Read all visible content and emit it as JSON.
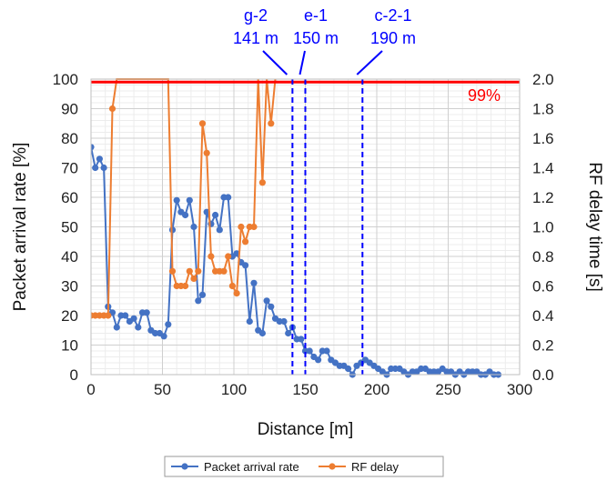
{
  "chart_data": {
    "type": "line",
    "title": "",
    "xlabel": "Distance [m]",
    "ylabel_left": "Packet arrival rate [%]",
    "ylabel_right": "RF delay time [s]",
    "xlim": [
      0,
      300
    ],
    "ylim_left": [
      0,
      100
    ],
    "ylim_right": [
      0,
      2.0
    ],
    "x_ticks": [
      0,
      50,
      100,
      150,
      200,
      250,
      300
    ],
    "y_left_ticks": [
      0,
      10,
      20,
      30,
      40,
      50,
      60,
      70,
      80,
      90,
      100
    ],
    "y_right_ticks": [
      "0.0",
      "0.2",
      "0.4",
      "0.6",
      "0.8",
      "1.0",
      "1.2",
      "1.4",
      "1.6",
      "1.8",
      "2.0"
    ],
    "grid": true,
    "legend_position": "bottom",
    "colors": {
      "packet": "#4472c4",
      "rf": "#ed7d31",
      "threshold": "#ff0000",
      "marker": "#0000ff"
    },
    "threshold": {
      "value": 99,
      "label": "99%"
    },
    "markers": [
      {
        "x": 141,
        "name": "g-2",
        "dist": "141 m"
      },
      {
        "x": 150,
        "name": "e-1",
        "dist": "150 m"
      },
      {
        "x": 190,
        "name": "c-2-1",
        "dist": "190 m"
      }
    ],
    "series": [
      {
        "name": "Packet arrival rate",
        "axis": "left",
        "points": [
          [
            0,
            77
          ],
          [
            3,
            70
          ],
          [
            6,
            73
          ],
          [
            9,
            70
          ],
          [
            12,
            23
          ],
          [
            15,
            21
          ],
          [
            18,
            16
          ],
          [
            21,
            20
          ],
          [
            24,
            20
          ],
          [
            27,
            18
          ],
          [
            30,
            19
          ],
          [
            33,
            16
          ],
          [
            36,
            21
          ],
          [
            39,
            21
          ],
          [
            42,
            15
          ],
          [
            45,
            14
          ],
          [
            48,
            14
          ],
          [
            51,
            13
          ],
          [
            54,
            17
          ],
          [
            57,
            49
          ],
          [
            60,
            59
          ],
          [
            63,
            55
          ],
          [
            66,
            54
          ],
          [
            69,
            59
          ],
          [
            72,
            50
          ],
          [
            75,
            25
          ],
          [
            78,
            27
          ],
          [
            81,
            55
          ],
          [
            84,
            51
          ],
          [
            87,
            54
          ],
          [
            90,
            49
          ],
          [
            93,
            60
          ],
          [
            96,
            60
          ],
          [
            99,
            40
          ],
          [
            102,
            41
          ],
          [
            105,
            38
          ],
          [
            108,
            37
          ],
          [
            111,
            18
          ],
          [
            114,
            31
          ],
          [
            117,
            15
          ],
          [
            120,
            14
          ],
          [
            123,
            25
          ],
          [
            126,
            23
          ],
          [
            129,
            19
          ],
          [
            132,
            18
          ],
          [
            135,
            18
          ],
          [
            138,
            14
          ],
          [
            141,
            16
          ],
          [
            144,
            12
          ],
          [
            147,
            12
          ],
          [
            150,
            8
          ],
          [
            153,
            8
          ],
          [
            156,
            6
          ],
          [
            159,
            5
          ],
          [
            162,
            8
          ],
          [
            165,
            8
          ],
          [
            168,
            5
          ],
          [
            171,
            4
          ],
          [
            174,
            3
          ],
          [
            177,
            3
          ],
          [
            180,
            2
          ],
          [
            183,
            0
          ],
          [
            186,
            3
          ],
          [
            189,
            4
          ],
          [
            192,
            5
          ],
          [
            195,
            4
          ],
          [
            198,
            3
          ],
          [
            201,
            2
          ],
          [
            204,
            1
          ],
          [
            207,
            0
          ],
          [
            210,
            2
          ],
          [
            213,
            2
          ],
          [
            216,
            2
          ],
          [
            219,
            1
          ],
          [
            222,
            0
          ],
          [
            225,
            1
          ],
          [
            228,
            1
          ],
          [
            231,
            2
          ],
          [
            234,
            2
          ],
          [
            237,
            1
          ],
          [
            240,
            1
          ],
          [
            243,
            1
          ],
          [
            246,
            2
          ],
          [
            249,
            1
          ],
          [
            252,
            1
          ],
          [
            255,
            0
          ],
          [
            258,
            1
          ],
          [
            261,
            0
          ],
          [
            264,
            1
          ],
          [
            267,
            1
          ],
          [
            270,
            1
          ],
          [
            273,
            0
          ],
          [
            276,
            0
          ],
          [
            279,
            1
          ],
          [
            282,
            0
          ],
          [
            285,
            0
          ]
        ]
      },
      {
        "name": "RF delay",
        "axis": "right",
        "points": [
          [
            0,
            0.4
          ],
          [
            3,
            0.4
          ],
          [
            6,
            0.4
          ],
          [
            9,
            0.4
          ],
          [
            12,
            0.4
          ],
          [
            15,
            1.8
          ],
          [
            18,
            2.0
          ],
          [
            54,
            2.0
          ],
          [
            57,
            0.7
          ],
          [
            60,
            0.6
          ],
          [
            63,
            0.6
          ],
          [
            66,
            0.6
          ],
          [
            69,
            0.7
          ],
          [
            72,
            0.65
          ],
          [
            75,
            0.7
          ],
          [
            78,
            1.7
          ],
          [
            81,
            1.5
          ],
          [
            84,
            0.8
          ],
          [
            87,
            0.7
          ],
          [
            90,
            0.7
          ],
          [
            93,
            0.7
          ],
          [
            96,
            0.8
          ],
          [
            99,
            0.6
          ],
          [
            102,
            0.55
          ],
          [
            105,
            1.0
          ],
          [
            108,
            0.9
          ],
          [
            111,
            1.0
          ],
          [
            114,
            1.0
          ],
          [
            117,
            2.0
          ],
          [
            120,
            1.3
          ],
          [
            123,
            2.0
          ],
          [
            126,
            1.7
          ],
          [
            129,
            2.0
          ]
        ]
      }
    ]
  }
}
